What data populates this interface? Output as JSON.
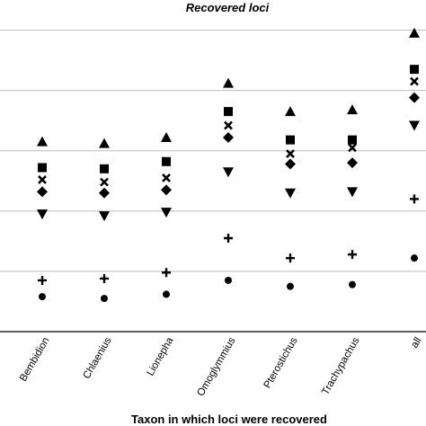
{
  "chart_data": {
    "type": "scatter",
    "title": "Recovered loci",
    "xlabel": "Taxon in which loci were recovered",
    "ylabel": "",
    "categories": [
      "Bembidion",
      "Chlaenius",
      "Lionepha",
      "Omoglymmius",
      "Pterostichus",
      "Trachypachus",
      "all"
    ],
    "ylim": [
      0,
      5.5
    ],
    "grid": true,
    "series": [
      {
        "marker": "triangle-up",
        "values": [
          3.15,
          3.12,
          3.22,
          4.12,
          3.65,
          3.68,
          4.95
        ]
      },
      {
        "marker": "square",
        "values": [
          2.72,
          2.7,
          2.82,
          3.65,
          3.18,
          3.18,
          4.35
        ]
      },
      {
        "marker": "x",
        "values": [
          2.52,
          2.48,
          2.55,
          3.42,
          2.95,
          3.05,
          4.15
        ]
      },
      {
        "marker": "diamond",
        "values": [
          2.32,
          2.3,
          2.35,
          3.22,
          2.78,
          2.8,
          3.88
        ]
      },
      {
        "marker": "triangle-down",
        "values": [
          1.95,
          1.92,
          1.98,
          2.65,
          2.3,
          2.32,
          3.42
        ]
      },
      {
        "marker": "plus",
        "values": [
          0.85,
          0.88,
          0.98,
          1.55,
          1.22,
          1.28,
          2.2
        ]
      },
      {
        "marker": "circle",
        "values": [
          0.58,
          0.55,
          0.62,
          0.85,
          0.75,
          0.78,
          1.22
        ]
      }
    ]
  }
}
